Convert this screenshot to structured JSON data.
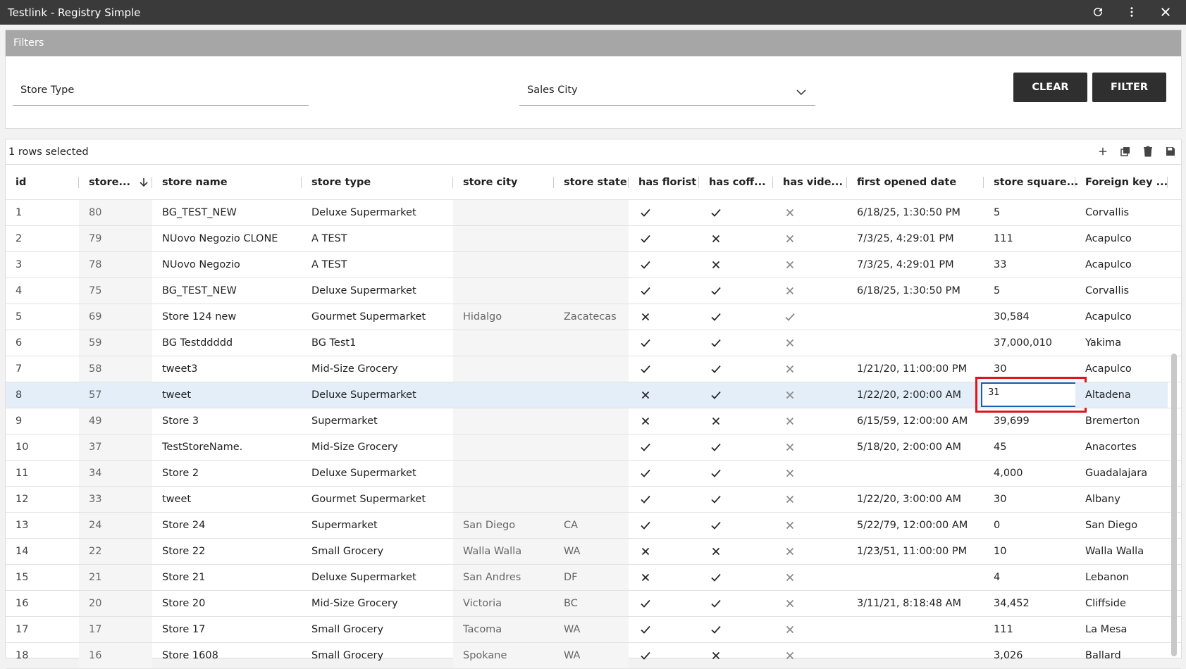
{
  "header": {
    "title": "Testlink - Registry Simple"
  },
  "filters": {
    "title": "Filters",
    "fields": [
      "Store Type",
      "Sales City"
    ],
    "buttons": [
      "CLEAR",
      "FILTER"
    ]
  },
  "table": {
    "selection": "1 rows selected",
    "columns": [
      "id",
      "store...",
      "store name",
      "store type",
      "store city",
      "store state",
      "has florist",
      "has coff...",
      "has vide...",
      "first opened date",
      "store square...",
      "Foreign key ..."
    ],
    "rows": [
      [
        "1",
        "80",
        "BG_TEST_NEW",
        "Deluxe Supermarket",
        null,
        null,
        true,
        true,
        false,
        "6/18/25, 1:30:50 PM",
        "5",
        "Corvallis"
      ],
      [
        "2",
        "79",
        "NUovo Negozio CLONE",
        "A TEST",
        null,
        null,
        true,
        false,
        false,
        "7/3/25, 4:29:01 PM",
        "111",
        "Acapulco"
      ],
      [
        "3",
        "78",
        "NUovo Negozio",
        "A TEST",
        null,
        null,
        true,
        false,
        false,
        "7/3/25, 4:29:01 PM",
        "33",
        "Acapulco"
      ],
      [
        "4",
        "75",
        "BG_TEST_NEW",
        "Deluxe Supermarket",
        null,
        null,
        true,
        true,
        false,
        "6/18/25, 1:30:50 PM",
        "5",
        "Corvallis"
      ],
      [
        "5",
        "69",
        "Store 124 new",
        "Gourmet Supermarket",
        "Hidalgo",
        "Zacatecas",
        false,
        true,
        true,
        null,
        "30,584",
        "Acapulco"
      ],
      [
        "6",
        "59",
        "BG Testddddd",
        "BG Test1",
        null,
        null,
        true,
        true,
        false,
        null,
        "37,000,010",
        "Yakima"
      ],
      [
        "7",
        "58",
        "tweet3",
        "Mid-Size Grocery",
        null,
        null,
        true,
        true,
        false,
        "1/21/20, 11:00:00 PM",
        "30",
        "Acapulco"
      ],
      [
        "8",
        "57",
        "tweet",
        "Deluxe Supermarket",
        null,
        null,
        false,
        true,
        false,
        "1/22/20, 2:00:00 AM",
        "31",
        "Altadena"
      ],
      [
        "9",
        "49",
        "Store 3",
        "Supermarket",
        null,
        null,
        false,
        false,
        false,
        "6/15/59, 12:00:00 AM",
        "39,699",
        "Bremerton"
      ],
      [
        "10",
        "37",
        "TestStoreName.",
        "Mid-Size Grocery",
        null,
        null,
        true,
        true,
        false,
        "5/18/20, 2:00:00 AM",
        "45",
        "Anacortes"
      ],
      [
        "11",
        "34",
        "Store 2",
        "Deluxe Supermarket",
        null,
        null,
        true,
        true,
        false,
        null,
        "4,000",
        "Guadalajara"
      ],
      [
        "12",
        "33",
        "tweet",
        "Gourmet Supermarket",
        null,
        null,
        true,
        true,
        false,
        "1/22/20, 3:00:00 AM",
        "30",
        "Albany"
      ],
      [
        "13",
        "24",
        "Store 24",
        "Supermarket",
        "San Diego",
        "CA",
        true,
        true,
        false,
        "5/22/79, 12:00:00 AM",
        "0",
        "San Diego"
      ],
      [
        "14",
        "22",
        "Store 22",
        "Small Grocery",
        "Walla Walla",
        "WA",
        false,
        false,
        false,
        "1/23/51, 11:00:00 PM",
        "10",
        "Walla Walla"
      ],
      [
        "15",
        "21",
        "Store 21",
        "Deluxe Supermarket",
        "San Andres",
        "DF",
        false,
        true,
        false,
        null,
        "4",
        "Lebanon"
      ],
      [
        "16",
        "20",
        "Store 20",
        "Mid-Size Grocery",
        "Victoria",
        "BC",
        true,
        true,
        false,
        "3/11/21, 8:18:48 AM",
        "34,452",
        "Cliffside"
      ],
      [
        "17",
        "17",
        "Store 17",
        "Small Grocery",
        "Tacoma",
        "WA",
        true,
        true,
        false,
        null,
        "111",
        "La Mesa"
      ],
      [
        "18",
        "16",
        "Store 1608",
        "Small Grocery",
        "Spokane",
        "WA",
        true,
        false,
        false,
        null,
        "3,026",
        "Ballard"
      ]
    ]
  }
}
